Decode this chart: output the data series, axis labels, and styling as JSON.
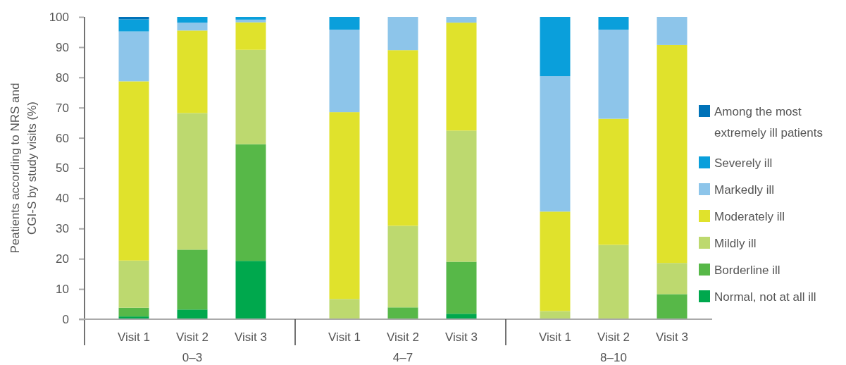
{
  "chart_data": {
    "type": "bar",
    "stacked": true,
    "ylabel": "Peatients according to NRS and CGI-S by study visits (%)",
    "categories": [
      "Visit 1",
      "Visit 2",
      "Visit 3",
      "Visit 1",
      "Visit 2",
      "Visit 3",
      "Visit 1",
      "Visit 2",
      "Visit 3"
    ],
    "annotations": [
      "0–3",
      "4–7",
      "8–10"
    ],
    "ylim": [
      0,
      100
    ],
    "yticks": [
      0,
      10,
      20,
      30,
      40,
      50,
      60,
      70,
      80,
      90,
      100
    ],
    "legend": "right",
    "series": [
      {
        "name": "Normal, not at all ill",
        "color": "#00a84d",
        "values": [
          0.9,
          3.2,
          19.3,
          0,
          0,
          1.8,
          0,
          0,
          0
        ]
      },
      {
        "name": "Borderline ill",
        "color": "#57b848",
        "values": [
          2.9,
          19.8,
          38.6,
          0,
          3.9,
          17.2,
          0,
          0,
          8.3
        ]
      },
      {
        "name": "Mildly ill",
        "color": "#bdd96f",
        "values": [
          15.6,
          45.2,
          31.2,
          6.7,
          27.0,
          43.4,
          2.7,
          24.6,
          10.3
        ]
      },
      {
        "name": "Moderately ill",
        "color": "#e0e22c",
        "values": [
          59.3,
          27.3,
          9.1,
          61.8,
          58.1,
          35.7,
          32.9,
          41.7,
          72.1
        ]
      },
      {
        "name": "Markedly ill",
        "color": "#8dc5ea",
        "values": [
          16.5,
          2.6,
          0.9,
          27.3,
          11.0,
          1.9,
          44.8,
          29.5,
          9.3
        ]
      },
      {
        "name": "Severely ill",
        "color": "#0a9fdb",
        "values": [
          4.0,
          1.9,
          0.9,
          4.2,
          0,
          0,
          19.6,
          4.2,
          0
        ]
      },
      {
        "name": "Among the most extremely ill patients",
        "color": "#0072b8",
        "values": [
          0.8,
          0,
          0,
          0,
          0,
          0,
          0,
          0,
          0
        ]
      }
    ]
  }
}
